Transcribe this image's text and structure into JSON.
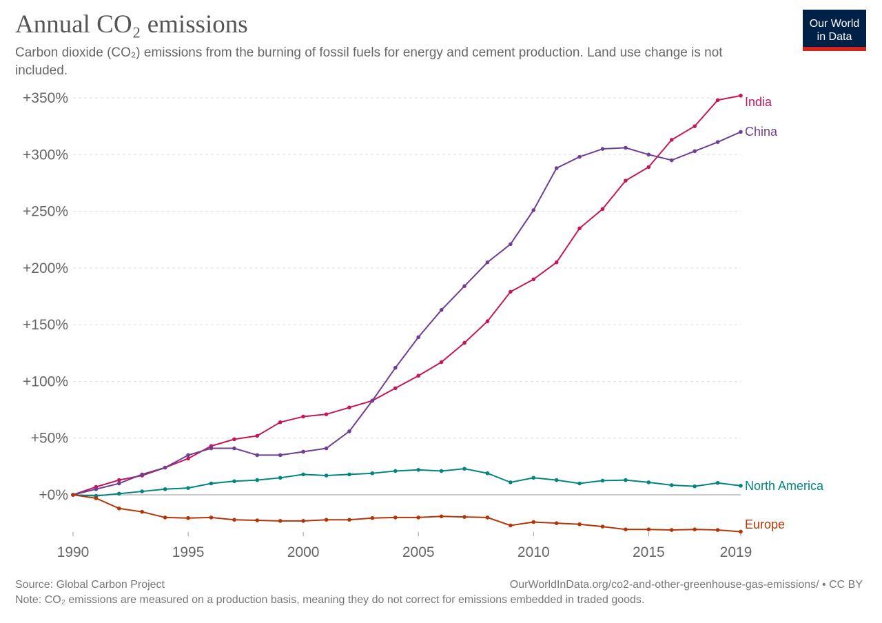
{
  "header": {
    "title": "Annual CO₂ emissions",
    "subtitle": "Carbon dioxide (CO₂) emissions from the burning of fossil fuels for energy and cement production. Land use change is not included.",
    "logo": "Our World in Data"
  },
  "footer": {
    "source": "Source: Global Carbon Project",
    "url": "OurWorldInData.org/co2-and-other-greenhouse-gas-emissions/ • CC BY",
    "note": "Note: CO₂ emissions are measured on a production basis, meaning they do not correct for emissions embedded in traded goods."
  },
  "chart_data": {
    "type": "line",
    "title": "Annual CO₂ emissions",
    "xlabel": "",
    "ylabel": "",
    "x": [
      1990,
      1991,
      1992,
      1993,
      1994,
      1995,
      1996,
      1997,
      1998,
      1999,
      2000,
      2001,
      2002,
      2003,
      2004,
      2005,
      2006,
      2007,
      2008,
      2009,
      2010,
      2011,
      2012,
      2013,
      2014,
      2015,
      2016,
      2017,
      2018,
      2019
    ],
    "xticks": [
      1990,
      1995,
      2000,
      2005,
      2010,
      2015,
      2019
    ],
    "yticks": [
      0,
      50,
      100,
      150,
      200,
      250,
      300,
      350
    ],
    "ytick_labels": [
      "+0%",
      "+50%",
      "+100%",
      "+150%",
      "+200%",
      "+250%",
      "+300%",
      "+350%"
    ],
    "xlim": [
      1990,
      2019
    ],
    "ylim": [
      -33,
      350
    ],
    "grid": "horizontal dashed",
    "legend": "inline labels at line ends (right)",
    "series": [
      {
        "name": "India",
        "color": "#c2185b",
        "values": [
          0,
          7,
          13,
          17,
          24,
          32,
          43,
          49,
          52,
          64,
          69,
          71,
          77,
          83,
          94,
          105,
          117,
          134,
          153,
          179,
          190,
          205,
          235,
          252,
          277,
          289,
          313,
          325,
          348,
          352
        ]
      },
      {
        "name": "China",
        "color": "#6d3e91",
        "values": [
          0,
          5,
          10,
          18,
          24,
          35,
          41,
          41,
          35,
          35,
          38,
          41,
          56,
          83,
          112,
          139,
          163,
          184,
          205,
          221,
          251,
          288,
          298,
          305,
          306,
          300,
          295,
          303,
          311,
          320
        ]
      },
      {
        "name": "North America",
        "color": "#00847e",
        "values": [
          0,
          -1,
          1,
          3,
          5,
          6,
          10,
          12,
          13,
          15,
          18,
          17,
          18,
          19,
          21,
          22,
          21,
          23,
          19,
          11,
          15,
          13,
          10,
          12.5,
          13,
          11,
          8.5,
          7.5,
          10.5,
          8
        ]
      },
      {
        "name": "Europe",
        "color": "#b13507",
        "values": [
          0,
          -3,
          -12,
          -15,
          -20,
          -20.5,
          -20,
          -22,
          -22.5,
          -23,
          -23,
          -22,
          -22,
          -20.5,
          -20,
          -20,
          -19,
          -19.5,
          -20,
          -27,
          -24,
          -25,
          -26,
          -28,
          -30.5,
          -30.5,
          -31,
          -30.5,
          -31,
          -32.5
        ]
      }
    ]
  }
}
